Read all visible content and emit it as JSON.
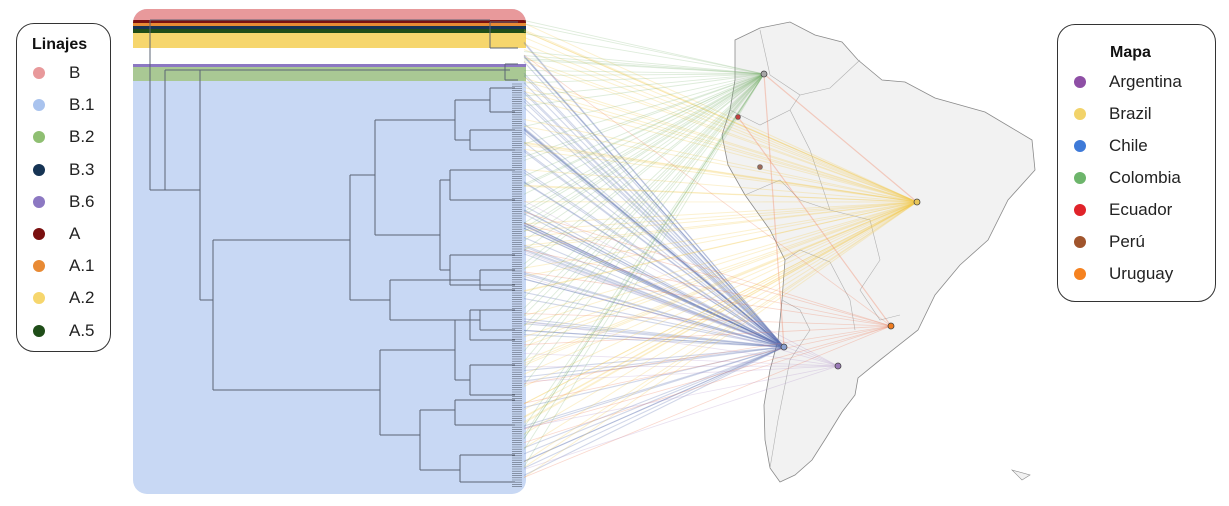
{
  "lineage_legend": {
    "title": "Linajes",
    "items": [
      {
        "label": "B",
        "color": "#e8999b"
      },
      {
        "label": "B.1",
        "color": "#a9c3ee"
      },
      {
        "label": "B.2",
        "color": "#8fbf72"
      },
      {
        "label": "B.3",
        "color": "#163454"
      },
      {
        "label": "B.6",
        "color": "#8c78c2"
      },
      {
        "label": "A",
        "color": "#7a1010"
      },
      {
        "label": "A.1",
        "color": "#e88a34"
      },
      {
        "label": "A.2",
        "color": "#f6d66d"
      },
      {
        "label": "A.5",
        "color": "#1f4d18"
      }
    ]
  },
  "map_legend": {
    "title": "Mapa",
    "items": [
      {
        "label": "Argentina",
        "color": "#8e4fa5"
      },
      {
        "label": "Brazil",
        "color": "#f2d36a"
      },
      {
        "label": "Chile",
        "color": "#3e7ad8"
      },
      {
        "label": "Colombia",
        "color": "#6db56b"
      },
      {
        "label": "Ecuador",
        "color": "#e0232a"
      },
      {
        "label": "Perú",
        "color": "#a0542c"
      },
      {
        "label": "Uruguay",
        "color": "#f58220"
      }
    ]
  },
  "link_colors": {
    "Brazil": "#f2c84b",
    "Chile": "#5a70b0",
    "Colombia": "#7bb56e",
    "Uruguay": "#f07d5c",
    "Argentina": "#b090c8"
  }
}
